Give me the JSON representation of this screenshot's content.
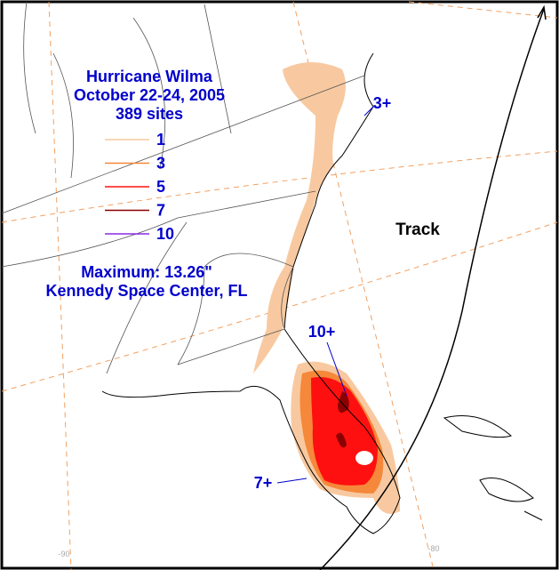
{
  "title": {
    "lines": [
      "Hurricane Wilma",
      "October 22-24, 2005",
      "389 sites"
    ]
  },
  "legend": [
    {
      "label": "1",
      "color": "#f8c9a0"
    },
    {
      "label": "3",
      "color": "#f5883a"
    },
    {
      "label": "5",
      "color": "#ff1010"
    },
    {
      "label": "7",
      "color": "#8b0000"
    },
    {
      "label": "10",
      "color": "#8a2be2"
    }
  ],
  "maximum": {
    "lines": [
      "Maximum: 13.26\"",
      "Kennedy Space Center, FL"
    ]
  },
  "annotations": {
    "track": "Track",
    "northeast": "3+",
    "center": "10+",
    "southwest": "7+"
  },
  "longitude_labels": [
    "-90",
    "-80"
  ]
}
